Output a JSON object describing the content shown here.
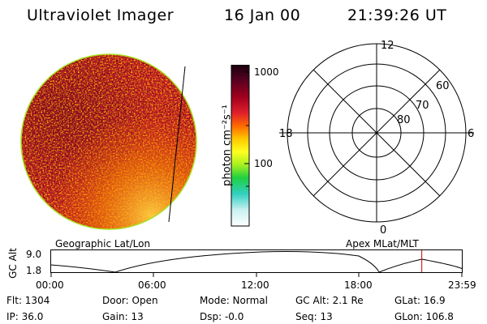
{
  "header": {
    "instrument": "Ultraviolet Imager",
    "date": "16 Jan 00",
    "time": "21:39:26 UT"
  },
  "colorbar": {
    "label": "photon cm⁻²s⁻¹",
    "ticks": [
      "1000",
      "100"
    ]
  },
  "polar_plot": {
    "mlt_labels": {
      "top": "12",
      "left": "18",
      "right": "6",
      "bottom": "0"
    },
    "lat_labels": [
      "60",
      "70",
      "80"
    ]
  },
  "orbit": {
    "left_title": "Geographic Lat/Lon",
    "right_title": "Apex MLat/MLT",
    "axis_label": "GC Alt",
    "y_ticks": [
      "9.0",
      "1.8"
    ],
    "x_ticks": [
      "00:00",
      "06:00",
      "12:00",
      "18:00",
      "23:59"
    ],
    "current_time_marker_hours": 21.66,
    "marker_color": "#cc0000"
  },
  "info": {
    "flt": "Flt: 1304",
    "ip": "IP: 36.0",
    "door": "Door: Open",
    "gain": "Gain: 13",
    "mode": "Mode: Normal",
    "dsp": "Dsp:  -0.0",
    "gcalt": "GC Alt: 2.1 Re",
    "seq": "Seq: 13",
    "glat": "GLat:  16.9",
    "glon": "GLon: 106.8"
  }
}
